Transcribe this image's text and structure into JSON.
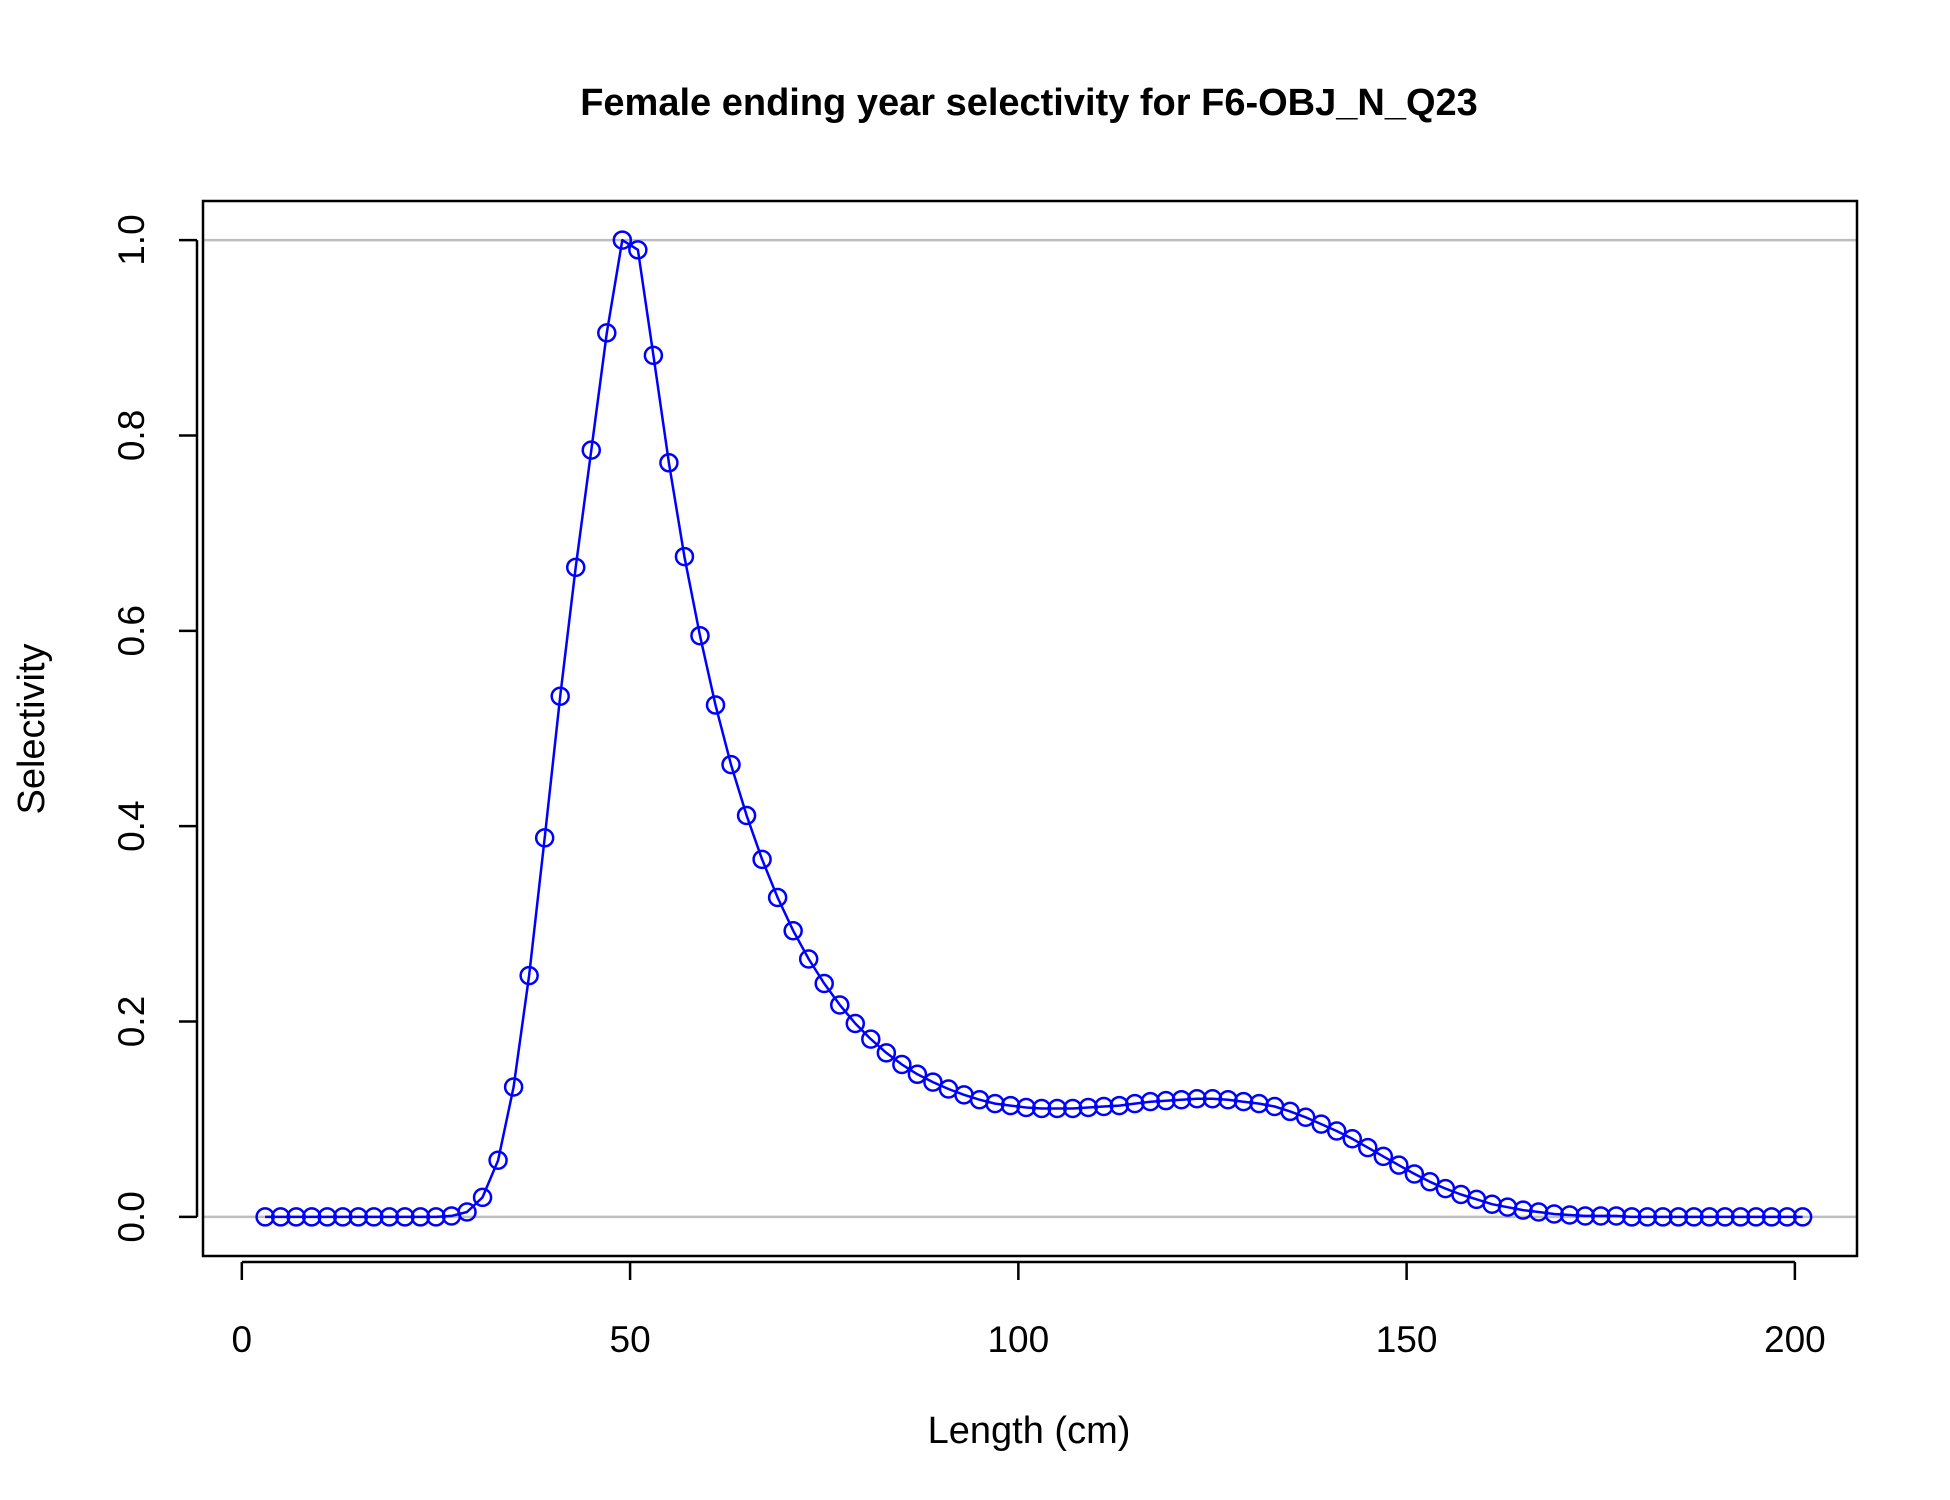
{
  "chart_data": {
    "type": "line",
    "title": "Female ending year selectivity for F6-OBJ_N_Q23",
    "xlabel": "Length (cm)",
    "ylabel": "Selectivity",
    "xlim": [
      -5,
      208
    ],
    "ylim": [
      -0.04,
      1.04
    ],
    "x_ticks": [
      0,
      50,
      100,
      150,
      200
    ],
    "y_ticks": [
      0.0,
      0.2,
      0.4,
      0.6,
      0.8,
      1.0
    ],
    "x_tick_labels": [
      "0",
      "50",
      "100",
      "150",
      "200"
    ],
    "y_tick_labels": [
      "0.0",
      "0.2",
      "0.4",
      "0.6",
      "0.8",
      "1.0"
    ],
    "reference_lines": [
      0,
      1
    ],
    "reference_line_color": "#bebebe",
    "series_color": "#0000ff",
    "marker": "open-circle",
    "legend": "none",
    "grid": false,
    "series": [
      {
        "x": [
          3,
          5,
          7,
          9,
          11,
          13,
          15,
          17,
          19,
          21,
          23,
          25,
          27,
          29,
          31,
          33,
          35,
          37,
          39,
          41,
          43,
          45,
          47,
          49,
          51,
          53,
          55,
          57,
          59,
          61,
          63,
          65,
          67,
          69,
          71,
          73,
          75,
          77,
          79,
          81,
          83,
          85,
          87,
          89,
          91,
          93,
          95,
          97,
          99,
          101,
          103,
          105,
          107,
          109,
          111,
          113,
          115,
          117,
          119,
          121,
          123,
          125,
          127,
          129,
          131,
          133,
          135,
          137,
          139,
          141,
          143,
          145,
          147,
          149,
          151,
          153,
          155,
          157,
          159,
          161,
          163,
          165,
          167,
          169,
          171,
          173,
          175,
          177,
          179,
          181,
          183,
          185,
          187,
          189,
          191,
          193,
          195,
          197,
          199,
          201
        ],
        "values": [
          0,
          0,
          0,
          0,
          0,
          0,
          0,
          0,
          0,
          0,
          0,
          0,
          0.001,
          0.005,
          0.02,
          0.058,
          0.133,
          0.247,
          0.388,
          0.533,
          0.665,
          0.785,
          0.905,
          1.0,
          0.99,
          0.882,
          0.772,
          0.676,
          0.595,
          0.524,
          0.463,
          0.411,
          0.366,
          0.327,
          0.293,
          0.264,
          0.239,
          0.217,
          0.198,
          0.182,
          0.168,
          0.156,
          0.146,
          0.138,
          0.131,
          0.125,
          0.12,
          0.116,
          0.114,
          0.112,
          0.111,
          0.111,
          0.111,
          0.112,
          0.113,
          0.114,
          0.116,
          0.118,
          0.119,
          0.12,
          0.121,
          0.121,
          0.12,
          0.118,
          0.116,
          0.113,
          0.108,
          0.102,
          0.095,
          0.088,
          0.08,
          0.071,
          0.062,
          0.053,
          0.044,
          0.036,
          0.029,
          0.023,
          0.018,
          0.013,
          0.01,
          0.007,
          0.005,
          0.003,
          0.002,
          0.001,
          0.001,
          0.001,
          0,
          0,
          0,
          0,
          0,
          0,
          0,
          0,
          0,
          0,
          0,
          0
        ]
      }
    ]
  }
}
